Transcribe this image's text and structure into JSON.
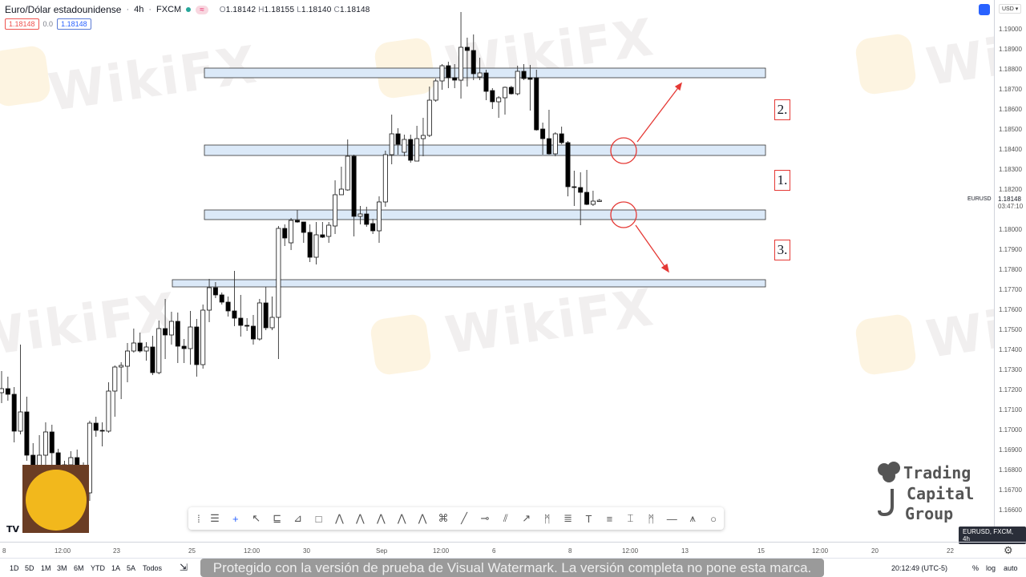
{
  "header": {
    "symbol_name": "Euro/Dólar estadounidense",
    "interval": "4h",
    "exchange": "FXCM",
    "ohlc": {
      "O": "1.18142",
      "H": "1.18155",
      "L": "1.18140",
      "C": "1.18148"
    },
    "sell_price": "1.18148",
    "spread": "0.0",
    "buy_price": "1.18148",
    "status_color": "#26a69a"
  },
  "price_axis": {
    "currency": "USD",
    "ticks": [
      "1.19000",
      "1.18900",
      "1.18800",
      "1.18700",
      "1.18600",
      "1.18500",
      "1.18400",
      "1.18300",
      "1.18200",
      "1.18000",
      "1.17900",
      "1.17800",
      "1.17700",
      "1.17600",
      "1.17500",
      "1.17400",
      "1.17300",
      "1.17200",
      "1.17100",
      "1.17000",
      "1.16900",
      "1.16800",
      "1.16700",
      "1.16600"
    ],
    "symbol_label": "EURUSD",
    "last_price": "1.18148",
    "countdown": "03:47:10"
  },
  "time_axis": {
    "ticks": [
      "8",
      "12:00",
      "23",
      "25",
      "12:00",
      "30",
      "Sep",
      "12:00",
      "6",
      "8",
      "12:00",
      "13",
      "15",
      "12:00",
      "20",
      "22"
    ]
  },
  "bottom_bar": {
    "ranges": [
      "1D",
      "5D",
      "1M",
      "3M",
      "6M",
      "YTD",
      "1A",
      "5A",
      "Todos"
    ],
    "watermark_banner": "Protegido con la versión de prueba de Visual Watermark. La versión completa no pone esta marca.",
    "clock": "20:12:49 (UTC-5)",
    "percent": "%",
    "log": "log",
    "auto": "auto"
  },
  "tooltip": "EURUSD, FXCM, 4h",
  "toolbar_icons": [
    "drag-handle",
    "lines-menu",
    "crosshair",
    "cursor",
    "parallel-channel",
    "pitchfork",
    "rectangle",
    "elliott-1-5",
    "elliott-abcde",
    "elliott-wxyz",
    "elliott-abc",
    "elliott-wxy",
    "xabcd-pattern",
    "trend-line",
    "horizontal-ray",
    "parallel-lines",
    "arrow",
    "head-shoulders",
    "fib-retracement",
    "text",
    "price-range",
    "date-price-range",
    "abcd",
    "horizontal-line",
    "triangle-pattern",
    "ellipse"
  ],
  "annotations": {
    "labels": [
      "2.",
      "1.",
      "3."
    ],
    "line_color": "#e53935",
    "zone_color": "#dbe9f8"
  },
  "watermarks": {
    "text": "WikiFX",
    "logo_text": "Trading Capital Group",
    "logo_words": [
      "Trading",
      "Capital",
      "Group"
    ]
  },
  "chart_data": {
    "type": "candlestick",
    "symbol": "EURUSD",
    "interval": "4h",
    "ylim": [
      1.1652,
      1.19148
    ],
    "up_color": "#ffffff",
    "down_color": "#000000",
    "zones": [
      {
        "top": 1.18808,
        "bottom": 1.1876
      },
      {
        "top": 1.18424,
        "bottom": 1.18372
      },
      {
        "top": 1.181,
        "bottom": 1.18052
      },
      {
        "top": 1.17752,
        "bottom": 1.17716
      }
    ],
    "candles_ohlc": [
      [
        1.17188,
        1.17296,
        1.17136,
        1.17208
      ],
      [
        1.17208,
        1.17268,
        1.17148,
        1.1718
      ],
      [
        1.1718,
        1.17216,
        1.1694,
        1.16996
      ],
      [
        1.16996,
        1.17428,
        1.1698,
        1.17092
      ],
      [
        1.17092,
        1.17168,
        1.16848,
        1.16876
      ],
      [
        1.16876,
        1.16936,
        1.16748,
        1.16788
      ],
      [
        1.16788,
        1.16976,
        1.16728,
        1.16876
      ],
      [
        1.16876,
        1.1704,
        1.16748,
        1.16992
      ],
      [
        1.16992,
        1.17028,
        1.16828,
        1.16888
      ],
      [
        1.16888,
        1.16908,
        1.16748,
        1.16816
      ],
      [
        1.16808,
        1.16848,
        1.16748,
        1.16828
      ],
      [
        1.16828,
        1.16896,
        1.16748,
        1.16864
      ],
      [
        1.16864,
        1.16904,
        1.16748,
        1.16816
      ],
      [
        1.16816,
        1.1684,
        1.16668,
        1.16748
      ],
      [
        1.16688,
        1.17048,
        1.16648,
        1.17036
      ],
      [
        1.17036,
        1.17068,
        1.16968,
        1.17
      ],
      [
        1.17,
        1.1704,
        1.1692,
        1.16996
      ],
      [
        1.16996,
        1.1724,
        1.16988,
        1.17196
      ],
      [
        1.17196,
        1.17324,
        1.17068,
        1.17316
      ],
      [
        1.17316,
        1.1734,
        1.17156,
        1.17324
      ],
      [
        1.1732,
        1.17436,
        1.1724,
        1.17396
      ],
      [
        1.17396,
        1.17508,
        1.17388,
        1.17436
      ],
      [
        1.17436,
        1.17488,
        1.17388,
        1.17396
      ],
      [
        1.17396,
        1.1744,
        1.17348,
        1.17416
      ],
      [
        1.17416,
        1.17472,
        1.17276,
        1.17288
      ],
      [
        1.17288,
        1.17548,
        1.1728,
        1.17508
      ],
      [
        1.17508,
        1.17656,
        1.17356,
        1.17476
      ],
      [
        1.17476,
        1.17592,
        1.17428,
        1.17544
      ],
      [
        1.17544,
        1.17588,
        1.17336,
        1.1742
      ],
      [
        1.1742,
        1.17456,
        1.17336,
        1.17408
      ],
      [
        1.17408,
        1.17596,
        1.17328,
        1.17516
      ],
      [
        1.17516,
        1.17556,
        1.17268,
        1.17328
      ],
      [
        1.17328,
        1.17628,
        1.17308,
        1.176
      ],
      [
        1.176,
        1.17756,
        1.1754,
        1.17712
      ],
      [
        1.17712,
        1.1774,
        1.1766,
        1.17676
      ],
      [
        1.17676,
        1.17688,
        1.17628,
        1.1764
      ],
      [
        1.1764,
        1.17668,
        1.17568,
        1.17596
      ],
      [
        1.17596,
        1.17796,
        1.1752,
        1.1756
      ],
      [
        1.1756,
        1.17676,
        1.17468,
        1.17524
      ],
      [
        1.17524,
        1.1756,
        1.17496,
        1.1752
      ],
      [
        1.1752,
        1.17576,
        1.17428,
        1.17456
      ],
      [
        1.17456,
        1.17656,
        1.17448,
        1.17636
      ],
      [
        1.17636,
        1.17716,
        1.175,
        1.17512
      ],
      [
        1.17512,
        1.17668,
        1.175,
        1.17564
      ],
      [
        1.17564,
        1.1802,
        1.17356,
        1.18008
      ],
      [
        1.18008,
        1.18028,
        1.1792,
        1.1796
      ],
      [
        1.17936,
        1.1806,
        1.179,
        1.18048
      ],
      [
        1.18048,
        1.181,
        1.18036,
        1.1804
      ],
      [
        1.1804,
        1.1804,
        1.17936,
        1.17988
      ],
      [
        1.17988,
        1.18028,
        1.1784,
        1.17864
      ],
      [
        1.17864,
        1.1804,
        1.17828,
        1.17976
      ],
      [
        1.17976,
        1.1804,
        1.1796,
        1.17964
      ],
      [
        1.17968,
        1.1804,
        1.17936,
        1.18024
      ],
      [
        1.1802,
        1.18248,
        1.1798,
        1.18176
      ],
      [
        1.18176,
        1.18316,
        1.18176,
        1.18204
      ],
      [
        1.182,
        1.18452,
        1.18196,
        1.18368
      ],
      [
        1.18368,
        1.18376,
        1.17968,
        1.18068
      ],
      [
        1.18068,
        1.1812,
        1.18028,
        1.1808
      ],
      [
        1.1808,
        1.18116,
        1.18016,
        1.18028
      ],
      [
        1.18032,
        1.18056,
        1.1798,
        1.17996
      ],
      [
        1.17996,
        1.18168,
        1.17936,
        1.1814
      ],
      [
        1.1814,
        1.18396,
        1.18116,
        1.18376
      ],
      [
        1.18376,
        1.18576,
        1.18328,
        1.1848
      ],
      [
        1.1848,
        1.18508,
        1.18376,
        1.18428
      ],
      [
        1.18388,
        1.18476,
        1.18368,
        1.18452
      ],
      [
        1.18452,
        1.18476,
        1.18336,
        1.18348
      ],
      [
        1.18344,
        1.1852,
        1.18344,
        1.18456
      ],
      [
        1.18456,
        1.1856,
        1.18368,
        1.18472
      ],
      [
        1.18472,
        1.18716,
        1.18464,
        1.18648
      ],
      [
        1.18648,
        1.18756,
        1.1864,
        1.18744
      ],
      [
        1.18744,
        1.18828,
        1.187,
        1.1882
      ],
      [
        1.1882,
        1.1884,
        1.18708,
        1.1876
      ],
      [
        1.1876,
        1.18828,
        1.18708,
        1.18748
      ],
      [
        1.18748,
        1.19088,
        1.18656,
        1.18912
      ],
      [
        1.18912,
        1.1896,
        1.18716,
        1.18896
      ],
      [
        1.18896,
        1.18976,
        1.18748,
        1.1878
      ],
      [
        1.18764,
        1.1886,
        1.18748,
        1.18784
      ],
      [
        1.18784,
        1.188,
        1.18648,
        1.18692
      ],
      [
        1.18696,
        1.18708,
        1.18604,
        1.1864
      ],
      [
        1.1864,
        1.18668,
        1.1856,
        1.1866
      ],
      [
        1.1866,
        1.18716,
        1.18576,
        1.18712
      ],
      [
        1.18712,
        1.1872,
        1.18676,
        1.1868
      ],
      [
        1.1868,
        1.1882,
        1.18672,
        1.18792
      ],
      [
        1.18792,
        1.18828,
        1.18748,
        1.18756
      ],
      [
        1.1876,
        1.18824,
        1.18596,
        1.18752
      ],
      [
        1.1876,
        1.188,
        1.18496,
        1.185
      ],
      [
        1.18504,
        1.18536,
        1.18376,
        1.18456
      ],
      [
        1.18456,
        1.186,
        1.18376,
        1.1838
      ],
      [
        1.1838,
        1.18488,
        1.18368,
        1.1848
      ],
      [
        1.1848,
        1.18516,
        1.18428,
        1.18436
      ],
      [
        1.18436,
        1.18444,
        1.18168,
        1.18216
      ],
      [
        1.18216,
        1.18296,
        1.1812,
        1.18212
      ],
      [
        1.18212,
        1.18288,
        1.18024,
        1.18188
      ],
      [
        1.18188,
        1.183,
        1.18124,
        1.18128
      ],
      [
        1.18128,
        1.18196,
        1.1812,
        1.18144
      ],
      [
        1.18142,
        1.18155,
        1.1814,
        1.18148
      ]
    ]
  }
}
